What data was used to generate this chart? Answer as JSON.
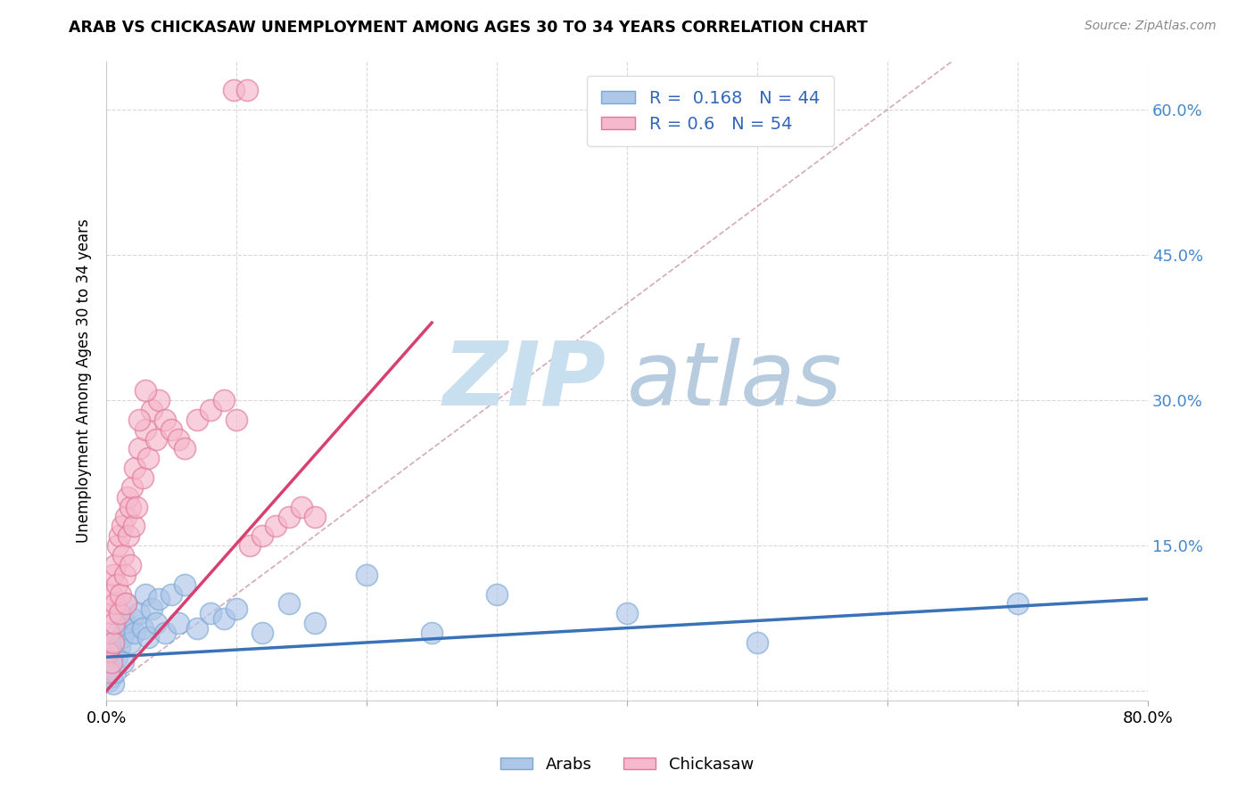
{
  "title": "ARAB VS CHICKASAW UNEMPLOYMENT AMONG AGES 30 TO 34 YEARS CORRELATION CHART",
  "source": "Source: ZipAtlas.com",
  "ylabel": "Unemployment Among Ages 30 to 34 years",
  "xlim": [
    0,
    0.8
  ],
  "ylim": [
    -0.01,
    0.65
  ],
  "arab_color": "#aec6e8",
  "arab_edge_color": "#7aa8d4",
  "chickasaw_color": "#f5b8cc",
  "chickasaw_edge_color": "#e07898",
  "arab_R": 0.168,
  "arab_N": 44,
  "chickasaw_R": 0.6,
  "chickasaw_N": 54,
  "arab_line_color": "#3a72b8",
  "chickasaw_line_color": "#d84070",
  "diag_line_color": "#d0a0b0",
  "watermark_zip": "ZIP",
  "watermark_atlas": "atlas",
  "watermark_color_zip": "#c8dff0",
  "watermark_color_atlas": "#b8cce0",
  "legend_arab_label": "Arabs",
  "legend_chickasaw_label": "Chickasaw",
  "arab_x": [
    0.001,
    0.002,
    0.003,
    0.004,
    0.005,
    0.005,
    0.006,
    0.007,
    0.008,
    0.009,
    0.01,
    0.01,
    0.012,
    0.013,
    0.015,
    0.015,
    0.016,
    0.018,
    0.02,
    0.022,
    0.025,
    0.028,
    0.03,
    0.032,
    0.035,
    0.038,
    0.04,
    0.045,
    0.05,
    0.055,
    0.06,
    0.07,
    0.08,
    0.09,
    0.1,
    0.12,
    0.14,
    0.16,
    0.2,
    0.25,
    0.3,
    0.4,
    0.5,
    0.7
  ],
  "arab_y": [
    0.03,
    0.01,
    0.025,
    0.015,
    0.05,
    0.008,
    0.04,
    0.02,
    0.035,
    0.06,
    0.045,
    0.08,
    0.055,
    0.03,
    0.07,
    0.09,
    0.065,
    0.05,
    0.075,
    0.06,
    0.08,
    0.065,
    0.1,
    0.055,
    0.085,
    0.07,
    0.095,
    0.06,
    0.1,
    0.07,
    0.11,
    0.065,
    0.08,
    0.075,
    0.085,
    0.06,
    0.09,
    0.07,
    0.12,
    0.06,
    0.1,
    0.08,
    0.05,
    0.09
  ],
  "chick_x": [
    0.001,
    0.002,
    0.002,
    0.003,
    0.004,
    0.004,
    0.005,
    0.005,
    0.006,
    0.007,
    0.007,
    0.008,
    0.009,
    0.01,
    0.01,
    0.011,
    0.012,
    0.013,
    0.014,
    0.015,
    0.015,
    0.016,
    0.017,
    0.018,
    0.018,
    0.02,
    0.021,
    0.022,
    0.023,
    0.025,
    0.028,
    0.03,
    0.032,
    0.035,
    0.038,
    0.04,
    0.045,
    0.05,
    0.055,
    0.06,
    0.07,
    0.08,
    0.09,
    0.1,
    0.11,
    0.12,
    0.13,
    0.14,
    0.15,
    0.16,
    0.098,
    0.108,
    0.025,
    0.03
  ],
  "chick_y": [
    0.04,
    0.06,
    0.02,
    0.08,
    0.03,
    0.1,
    0.05,
    0.12,
    0.07,
    0.09,
    0.13,
    0.11,
    0.15,
    0.08,
    0.16,
    0.1,
    0.17,
    0.14,
    0.12,
    0.18,
    0.09,
    0.2,
    0.16,
    0.19,
    0.13,
    0.21,
    0.17,
    0.23,
    0.19,
    0.25,
    0.22,
    0.27,
    0.24,
    0.29,
    0.26,
    0.3,
    0.28,
    0.27,
    0.26,
    0.25,
    0.28,
    0.29,
    0.3,
    0.28,
    0.15,
    0.16,
    0.17,
    0.18,
    0.19,
    0.18,
    0.62,
    0.62,
    0.28,
    0.31
  ],
  "arab_line_x": [
    0.0,
    0.8
  ],
  "arab_line_y": [
    0.035,
    0.095
  ],
  "chick_line_x": [
    0.0,
    0.25
  ],
  "chick_line_y": [
    0.0,
    0.38
  ],
  "diag_line_x": [
    0.0,
    0.65
  ],
  "diag_line_y": [
    0.0,
    0.65
  ]
}
